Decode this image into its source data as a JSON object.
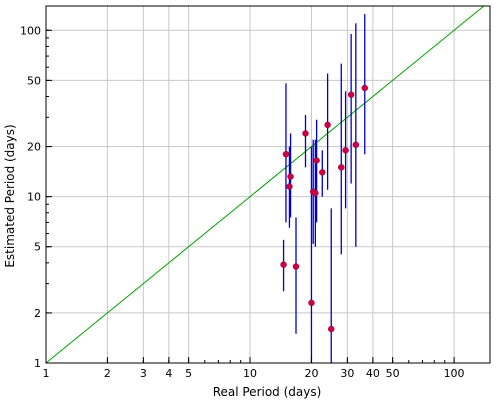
{
  "chart_data": {
    "type": "scatter",
    "xlabel": "Real Period (days)",
    "ylabel": "Estimated Period (days)",
    "x_scale": "log",
    "y_scale": "log",
    "xlim": [
      1,
      150
    ],
    "ylim": [
      1,
      140
    ],
    "grid": true,
    "x_ticks": [
      1,
      2,
      3,
      4,
      5,
      10,
      20,
      30,
      40,
      50,
      100
    ],
    "x_tick_labels": [
      "1",
      "2",
      "3",
      "4",
      "5",
      "10",
      "20",
      "30",
      "40",
      "50",
      "100"
    ],
    "y_ticks": [
      1,
      2,
      5,
      10,
      20,
      50,
      100
    ],
    "y_tick_labels": [
      "1",
      "2",
      "5",
      "10",
      "20",
      "50",
      "100"
    ],
    "reference_line": {
      "type": "identity",
      "from": 1,
      "to": 150,
      "color": "#00a000"
    },
    "error_bar_color": "#0000cc",
    "marker_color": "#cc0044",
    "points": [
      {
        "x": 14.6,
        "y": 3.9,
        "ylow": 2.7,
        "yhigh": 5.5
      },
      {
        "x": 15.0,
        "y": 18.0,
        "ylow": 7.0,
        "yhigh": 48.0
      },
      {
        "x": 15.6,
        "y": 11.5,
        "ylow": 6.5,
        "yhigh": 20.0
      },
      {
        "x": 15.8,
        "y": 13.2,
        "ylow": 7.5,
        "yhigh": 24.0
      },
      {
        "x": 16.8,
        "y": 3.8,
        "ylow": 1.5,
        "yhigh": 7.5
      },
      {
        "x": 18.7,
        "y": 24.0,
        "ylow": 15.0,
        "yhigh": 31.0
      },
      {
        "x": 20.0,
        "y": 2.3,
        "ylow": 1.0,
        "yhigh": 20.0
      },
      {
        "x": 20.4,
        "y": 10.7,
        "ylow": 5.2,
        "yhigh": 22.0
      },
      {
        "x": 20.9,
        "y": 10.5,
        "ylow": 5.0,
        "yhigh": 22.0
      },
      {
        "x": 21.2,
        "y": 16.5,
        "ylow": 7.0,
        "yhigh": 29.0
      },
      {
        "x": 22.6,
        "y": 14.0,
        "ylow": 10.0,
        "yhigh": 19.0
      },
      {
        "x": 24.0,
        "y": 27.0,
        "ylow": 11.0,
        "yhigh": 55.0
      },
      {
        "x": 25.0,
        "y": 1.6,
        "ylow": 1.0,
        "yhigh": 8.5
      },
      {
        "x": 28.0,
        "y": 15.0,
        "ylow": 4.5,
        "yhigh": 63.0
      },
      {
        "x": 29.4,
        "y": 19.0,
        "ylow": 8.5,
        "yhigh": 43.0
      },
      {
        "x": 31.3,
        "y": 41.0,
        "ylow": 12.0,
        "yhigh": 95.0
      },
      {
        "x": 33.0,
        "y": 20.5,
        "ylow": 5.0,
        "yhigh": 110.0
      },
      {
        "x": 36.5,
        "y": 45.0,
        "ylow": 18.0,
        "yhigh": 125.0
      }
    ]
  }
}
